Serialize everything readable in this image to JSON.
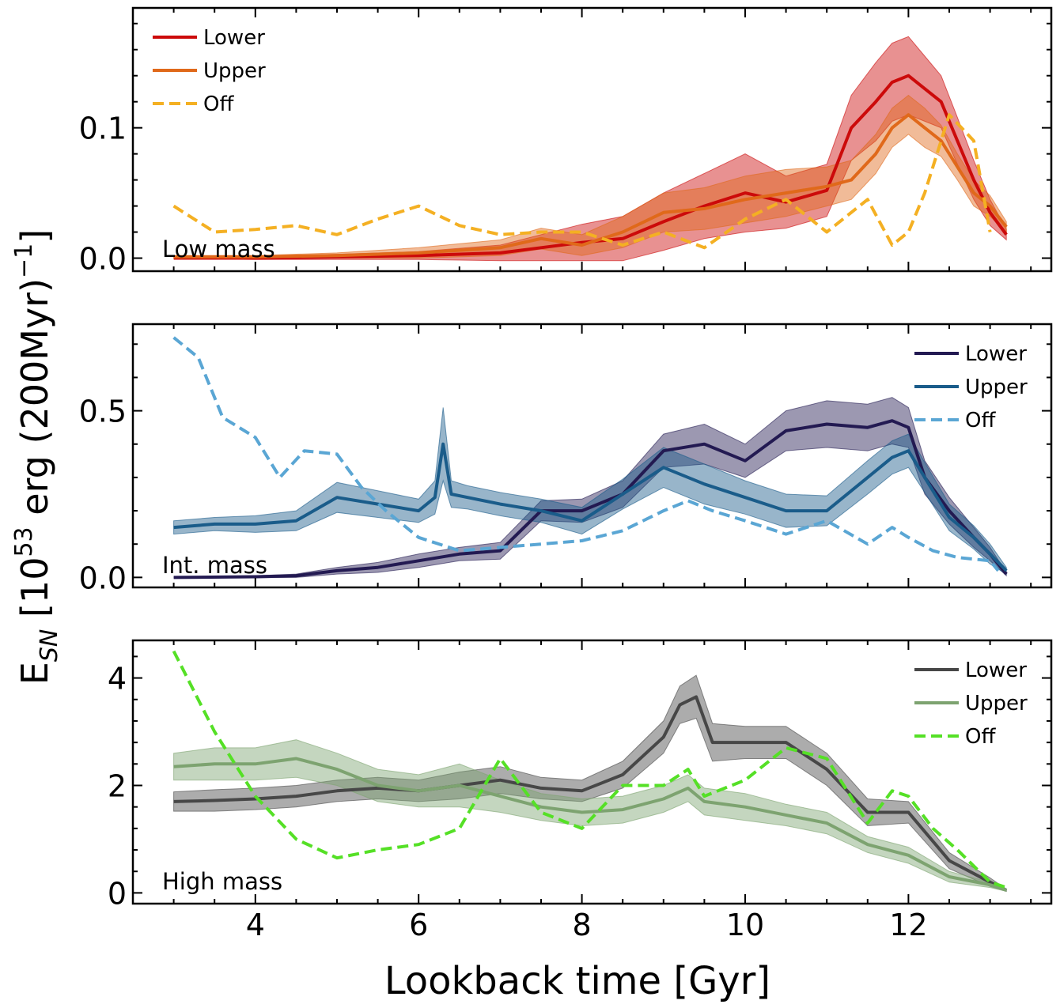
{
  "figure": {
    "xlabel": "Lookback time [Gyr]",
    "ylabel_main": "E",
    "ylabel_sub": "SN",
    "ylabel_rest": " [10",
    "ylabel_exp1": "53",
    "ylabel_rest2": " erg (200Myr)",
    "ylabel_exp2": "−1",
    "ylabel_close": ""
  },
  "chart_data": [
    {
      "type": "line",
      "title": "Low mass",
      "xlabel": "Lookback time [Gyr]",
      "ylabel": "E_SN [10^53 erg (200Myr)^-1]",
      "xlim": [
        2.5,
        13.75
      ],
      "ylim": [
        -0.01,
        0.192
      ],
      "yticks": [
        0.0,
        0.1
      ],
      "ytick_labels": [
        "0.0",
        "0.1"
      ],
      "xticks": [
        4,
        6,
        8,
        10,
        12
      ],
      "xtick_labels": [
        "4",
        "6",
        "8",
        "10",
        "12"
      ],
      "legend_position": "top-left",
      "series": [
        {
          "name": "Lower",
          "color": "#cc0a0a",
          "style": "solid",
          "x": [
            3.0,
            4.0,
            5.0,
            6.0,
            7.0,
            7.5,
            8.0,
            8.5,
            9.0,
            9.5,
            10.0,
            10.5,
            11.0,
            11.3,
            11.6,
            11.8,
            12.0,
            12.2,
            12.4,
            12.6,
            12.8,
            13.0,
            13.2
          ],
          "y": [
            0.0,
            0.0,
            0.001,
            0.002,
            0.004,
            0.008,
            0.012,
            0.015,
            0.028,
            0.04,
            0.05,
            0.043,
            0.052,
            0.1,
            0.12,
            0.135,
            0.14,
            0.13,
            0.12,
            0.09,
            0.06,
            0.035,
            0.018
          ],
          "band": [
            0.0,
            0.001,
            0.002,
            0.003,
            0.006,
            0.01,
            0.014,
            0.017,
            0.022,
            0.025,
            0.03,
            0.02,
            0.02,
            0.025,
            0.03,
            0.03,
            0.03,
            0.025,
            0.02,
            0.018,
            0.015,
            0.01,
            0.004
          ]
        },
        {
          "name": "Upper",
          "color": "#e0691a",
          "style": "solid",
          "x": [
            3.0,
            4.0,
            5.0,
            6.0,
            7.0,
            7.5,
            8.0,
            8.5,
            9.0,
            9.5,
            10.0,
            10.5,
            11.0,
            11.3,
            11.6,
            11.8,
            12.0,
            12.2,
            12.4,
            12.6,
            12.8,
            13.0,
            13.2
          ],
          "y": [
            0.001,
            0.001,
            0.002,
            0.004,
            0.008,
            0.015,
            0.01,
            0.02,
            0.035,
            0.038,
            0.045,
            0.05,
            0.055,
            0.06,
            0.08,
            0.1,
            0.11,
            0.1,
            0.09,
            0.07,
            0.05,
            0.04,
            0.024
          ],
          "band": [
            0.001,
            0.001,
            0.002,
            0.004,
            0.006,
            0.008,
            0.008,
            0.012,
            0.015,
            0.016,
            0.018,
            0.018,
            0.015,
            0.015,
            0.015,
            0.015,
            0.015,
            0.015,
            0.012,
            0.01,
            0.01,
            0.008,
            0.004
          ]
        },
        {
          "name": "Off",
          "color": "#f4b023",
          "style": "dashed",
          "x": [
            3.0,
            3.5,
            4.0,
            4.5,
            5.0,
            5.5,
            6.0,
            6.5,
            7.0,
            7.5,
            8.0,
            8.5,
            9.0,
            9.5,
            10.0,
            10.5,
            11.0,
            11.5,
            11.8,
            12.0,
            12.2,
            12.5,
            12.8,
            13.0
          ],
          "y": [
            0.04,
            0.02,
            0.022,
            0.025,
            0.018,
            0.03,
            0.04,
            0.025,
            0.018,
            0.02,
            0.02,
            0.01,
            0.02,
            0.008,
            0.03,
            0.045,
            0.02,
            0.045,
            0.01,
            0.02,
            0.05,
            0.11,
            0.09,
            0.02
          ]
        }
      ]
    },
    {
      "type": "line",
      "title": "Int. mass",
      "xlabel": "Lookback time [Gyr]",
      "ylabel": "E_SN [10^53 erg (200Myr)^-1]",
      "xlim": [
        2.5,
        13.75
      ],
      "ylim": [
        -0.03,
        0.76
      ],
      "yticks": [
        0.0,
        0.5
      ],
      "ytick_labels": [
        "0.0",
        "0.5"
      ],
      "xticks": [
        4,
        6,
        8,
        10,
        12
      ],
      "xtick_labels": [
        "4",
        "6",
        "8",
        "10",
        "12"
      ],
      "legend_position": "top-right",
      "series": [
        {
          "name": "Lower",
          "color": "#231a52",
          "style": "solid",
          "x": [
            3.0,
            4.0,
            4.5,
            5.0,
            5.5,
            6.0,
            6.5,
            7.0,
            7.5,
            8.0,
            8.5,
            9.0,
            9.5,
            10.0,
            10.5,
            11.0,
            11.5,
            11.8,
            12.0,
            12.2,
            12.5,
            12.8,
            13.0,
            13.2
          ],
          "y": [
            0.0,
            0.002,
            0.005,
            0.02,
            0.03,
            0.05,
            0.07,
            0.08,
            0.2,
            0.2,
            0.25,
            0.38,
            0.4,
            0.35,
            0.44,
            0.46,
            0.45,
            0.47,
            0.45,
            0.3,
            0.2,
            0.12,
            0.07,
            0.01
          ],
          "band": [
            0.0,
            0.003,
            0.005,
            0.01,
            0.015,
            0.02,
            0.02,
            0.025,
            0.03,
            0.035,
            0.04,
            0.05,
            0.06,
            0.05,
            0.06,
            0.07,
            0.07,
            0.07,
            0.06,
            0.05,
            0.04,
            0.03,
            0.02,
            0.005
          ]
        },
        {
          "name": "Upper",
          "color": "#1a5c8a",
          "style": "solid",
          "x": [
            3.0,
            3.5,
            4.0,
            4.5,
            5.0,
            5.5,
            6.0,
            6.2,
            6.3,
            6.4,
            6.6,
            7.0,
            7.5,
            8.0,
            8.5,
            9.0,
            9.5,
            10.0,
            10.5,
            11.0,
            11.5,
            11.8,
            12.0,
            12.2,
            12.5,
            12.8,
            13.0,
            13.2
          ],
          "y": [
            0.15,
            0.16,
            0.16,
            0.17,
            0.24,
            0.22,
            0.2,
            0.24,
            0.4,
            0.25,
            0.24,
            0.22,
            0.2,
            0.17,
            0.25,
            0.33,
            0.28,
            0.24,
            0.2,
            0.2,
            0.3,
            0.36,
            0.38,
            0.3,
            0.18,
            0.12,
            0.07,
            0.02
          ],
          "band": [
            0.02,
            0.02,
            0.025,
            0.03,
            0.045,
            0.04,
            0.035,
            0.05,
            0.11,
            0.04,
            0.035,
            0.035,
            0.035,
            0.04,
            0.045,
            0.06,
            0.06,
            0.05,
            0.05,
            0.045,
            0.05,
            0.05,
            0.05,
            0.045,
            0.04,
            0.035,
            0.03,
            0.01
          ]
        },
        {
          "name": "Off",
          "color": "#5aa6d4",
          "style": "dashed",
          "x": [
            3.0,
            3.3,
            3.6,
            4.0,
            4.3,
            4.6,
            5.0,
            5.3,
            5.6,
            6.0,
            6.5,
            7.0,
            7.5,
            8.0,
            8.5,
            9.0,
            9.3,
            9.6,
            10.0,
            10.5,
            11.0,
            11.5,
            11.8,
            12.0,
            12.3,
            12.6,
            13.0,
            13.1
          ],
          "y": [
            0.72,
            0.66,
            0.48,
            0.42,
            0.3,
            0.38,
            0.37,
            0.27,
            0.2,
            0.12,
            0.08,
            0.09,
            0.1,
            0.11,
            0.14,
            0.2,
            0.23,
            0.2,
            0.17,
            0.13,
            0.17,
            0.1,
            0.15,
            0.12,
            0.08,
            0.06,
            0.05,
            0.02
          ]
        }
      ]
    },
    {
      "type": "line",
      "title": "High mass",
      "xlabel": "Lookback time [Gyr]",
      "ylabel": "E_SN [10^53 erg (200Myr)^-1]",
      "xlim": [
        2.5,
        13.75
      ],
      "ylim": [
        -0.2,
        4.7
      ],
      "yticks": [
        0,
        2,
        4
      ],
      "ytick_labels": [
        "0",
        "2",
        "4"
      ],
      "xticks": [
        4,
        6,
        8,
        10,
        12
      ],
      "xtick_labels": [
        "4",
        "6",
        "8",
        "10",
        "12"
      ],
      "legend_position": "top-right",
      "series": [
        {
          "name": "Lower",
          "color": "#474747",
          "style": "solid",
          "x": [
            3.0,
            3.5,
            4.0,
            4.5,
            5.0,
            5.5,
            6.0,
            6.5,
            7.0,
            7.5,
            8.0,
            8.5,
            9.0,
            9.2,
            9.4,
            9.6,
            10.0,
            10.5,
            11.0,
            11.5,
            12.0,
            12.5,
            13.0,
            13.2
          ],
          "y": [
            1.7,
            1.72,
            1.75,
            1.8,
            1.9,
            1.95,
            1.9,
            2.0,
            2.1,
            1.95,
            1.9,
            2.2,
            2.9,
            3.5,
            3.65,
            2.8,
            2.8,
            2.8,
            2.3,
            1.5,
            1.5,
            0.6,
            0.2,
            0.05
          ],
          "band": [
            0.18,
            0.2,
            0.2,
            0.2,
            0.2,
            0.2,
            0.2,
            0.25,
            0.25,
            0.2,
            0.2,
            0.25,
            0.3,
            0.35,
            0.4,
            0.35,
            0.3,
            0.3,
            0.3,
            0.25,
            0.2,
            0.15,
            0.08,
            0.02
          ]
        },
        {
          "name": "Upper",
          "color": "#7da370",
          "style": "solid",
          "x": [
            3.0,
            3.5,
            4.0,
            4.5,
            5.0,
            5.5,
            6.0,
            6.5,
            7.0,
            7.5,
            8.0,
            8.5,
            9.0,
            9.3,
            9.5,
            10.0,
            10.5,
            11.0,
            11.5,
            12.0,
            12.5,
            13.0,
            13.2
          ],
          "y": [
            2.35,
            2.4,
            2.4,
            2.5,
            2.3,
            2.0,
            1.9,
            2.0,
            1.8,
            1.6,
            1.5,
            1.55,
            1.75,
            1.95,
            1.7,
            1.6,
            1.45,
            1.3,
            0.9,
            0.7,
            0.3,
            0.15,
            0.05
          ],
          "band": [
            0.25,
            0.3,
            0.3,
            0.35,
            0.3,
            0.3,
            0.3,
            0.4,
            0.3,
            0.25,
            0.25,
            0.25,
            0.25,
            0.25,
            0.25,
            0.25,
            0.2,
            0.2,
            0.15,
            0.15,
            0.1,
            0.05,
            0.02
          ]
        },
        {
          "name": "Off",
          "color": "#55e026",
          "style": "dashed",
          "x": [
            3.0,
            3.5,
            4.0,
            4.5,
            5.0,
            5.5,
            6.0,
            6.5,
            7.0,
            7.5,
            8.0,
            8.5,
            9.0,
            9.3,
            9.5,
            10.0,
            10.5,
            11.0,
            11.5,
            11.8,
            12.0,
            12.3,
            12.6,
            13.0,
            13.2
          ],
          "y": [
            4.5,
            3.0,
            1.8,
            1.0,
            0.65,
            0.8,
            0.9,
            1.2,
            2.5,
            1.5,
            1.2,
            2.0,
            2.0,
            2.3,
            1.8,
            2.1,
            2.7,
            2.5,
            1.3,
            1.9,
            1.8,
            1.2,
            0.8,
            0.2,
            0.1
          ]
        }
      ]
    }
  ]
}
